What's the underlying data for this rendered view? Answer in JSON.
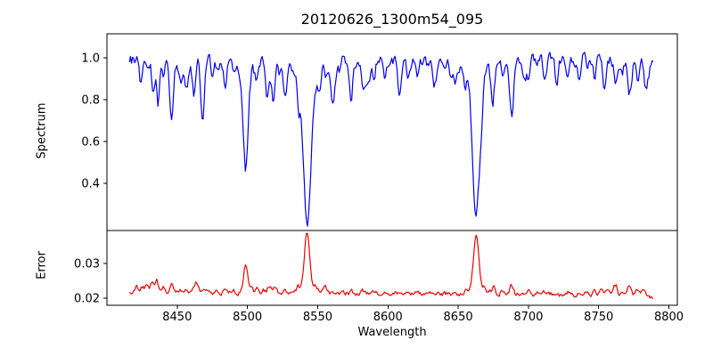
{
  "title": "20120626_1300m54_095",
  "layout_colors": {
    "background": "#ffffff",
    "axes": "#000000",
    "text": "#000000",
    "spectrum_line": "#0000ee",
    "error_line": "#ee0000"
  },
  "chart_data": {
    "type": "line",
    "title": "20120626_1300m54_095",
    "xlabel": "Wavelength",
    "xlim": [
      8400,
      8806
    ],
    "xticks": [
      8450,
      8500,
      8550,
      8600,
      8650,
      8700,
      8750,
      8800
    ],
    "xtick_labels": [
      "8450",
      "8500",
      "8550",
      "8600",
      "8650",
      "8700",
      "8750",
      "8800"
    ],
    "data_wavelength_range": [
      8416,
      8789
    ],
    "sample_step_angstrom": 0.75,
    "grid": false,
    "legend": false,
    "panels": [
      {
        "name": "spectrum",
        "ylabel": "Spectrum",
        "ylim": [
          0.175,
          1.115
        ],
        "yticks": [
          0.4,
          0.6,
          0.8,
          1.0
        ],
        "ytick_labels": [
          "0.4",
          "0.6",
          "0.8",
          "1.0"
        ],
        "line_color": "#0000ee",
        "continuum": 0.99,
        "noise_amplitude": 0.017,
        "absorption_lines": [
          {
            "center": 8424,
            "depth": 0.1,
            "sigma": 1.1
          },
          {
            "center": 8428.5,
            "depth": 0.05,
            "sigma": 0.9
          },
          {
            "center": 8433,
            "depth": 0.16,
            "sigma": 1.1
          },
          {
            "center": 8437,
            "depth": 0.04,
            "sigma": 0.9
          },
          {
            "center": 8440.5,
            "depth": 0.09,
            "sigma": 1.0
          },
          {
            "center": 8446,
            "depth": 0.26,
            "sigma": 1.2
          },
          {
            "center": 8452,
            "depth": 0.05,
            "sigma": 0.9
          },
          {
            "center": 8456.5,
            "depth": 0.07,
            "sigma": 0.9
          },
          {
            "center": 8462,
            "depth": 0.13,
            "sigma": 1.1
          },
          {
            "center": 8468,
            "depth": 0.32,
            "sigma": 1.3
          },
          {
            "center": 8475,
            "depth": 0.06,
            "sigma": 0.9
          },
          {
            "center": 8479,
            "depth": 0.05,
            "sigma": 0.9
          },
          {
            "center": 8483.5,
            "depth": 0.08,
            "sigma": 1.0
          },
          {
            "center": 8490,
            "depth": 0.06,
            "sigma": 0.9
          },
          {
            "center": 8494,
            "depth": 0.05,
            "sigma": 0.9
          },
          {
            "center": 8498.8,
            "depth": 0.52,
            "sigma": 1.7,
            "damping_wings": true
          },
          {
            "center": 8506,
            "depth": 0.07,
            "sigma": 0.9
          },
          {
            "center": 8514,
            "depth": 0.17,
            "sigma": 1.2
          },
          {
            "center": 8518.5,
            "depth": 0.21,
            "sigma": 1.2
          },
          {
            "center": 8523,
            "depth": 0.06,
            "sigma": 0.9
          },
          {
            "center": 8527,
            "depth": 0.08,
            "sigma": 1.0
          },
          {
            "center": 8536,
            "depth": 0.1,
            "sigma": 1.0
          },
          {
            "center": 8542.5,
            "depth": 0.78,
            "sigma": 2.6,
            "damping_wings": true
          },
          {
            "center": 8551,
            "depth": 0.08,
            "sigma": 0.9
          },
          {
            "center": 8556,
            "depth": 0.06,
            "sigma": 0.9
          },
          {
            "center": 8560.5,
            "depth": 0.13,
            "sigma": 1.2
          },
          {
            "center": 8566,
            "depth": 0.05,
            "sigma": 0.9
          },
          {
            "center": 8574,
            "depth": 0.09,
            "sigma": 1.0
          },
          {
            "center": 8582,
            "depth": 0.08,
            "sigma": 1.0
          },
          {
            "center": 8590,
            "depth": 0.06,
            "sigma": 0.9
          },
          {
            "center": 8598,
            "depth": 0.07,
            "sigma": 0.9
          },
          {
            "center": 8608,
            "depth": 0.14,
            "sigma": 1.2
          },
          {
            "center": 8614,
            "depth": 0.06,
            "sigma": 0.9
          },
          {
            "center": 8621,
            "depth": 0.11,
            "sigma": 1.1
          },
          {
            "center": 8628,
            "depth": 0.05,
            "sigma": 0.9
          },
          {
            "center": 8634,
            "depth": 0.05,
            "sigma": 0.9
          },
          {
            "center": 8641,
            "depth": 0.06,
            "sigma": 0.9
          },
          {
            "center": 8648,
            "depth": 0.1,
            "sigma": 1.1
          },
          {
            "center": 8655,
            "depth": 0.07,
            "sigma": 1.0
          },
          {
            "center": 8662.8,
            "depth": 0.74,
            "sigma": 2.4,
            "damping_wings": true
          },
          {
            "center": 8674.5,
            "depth": 0.19,
            "sigma": 1.2
          },
          {
            "center": 8682,
            "depth": 0.07,
            "sigma": 0.9
          },
          {
            "center": 8688,
            "depth": 0.27,
            "sigma": 1.4
          },
          {
            "center": 8696,
            "depth": 0.06,
            "sigma": 0.9
          },
          {
            "center": 8700.5,
            "depth": 0.09,
            "sigma": 1.0
          },
          {
            "center": 8706,
            "depth": 0.05,
            "sigma": 0.9
          },
          {
            "center": 8712,
            "depth": 0.1,
            "sigma": 1.1
          },
          {
            "center": 8720,
            "depth": 0.11,
            "sigma": 1.1
          },
          {
            "center": 8728,
            "depth": 0.12,
            "sigma": 1.2
          },
          {
            "center": 8736,
            "depth": 0.09,
            "sigma": 1.0
          },
          {
            "center": 8742,
            "depth": 0.06,
            "sigma": 0.9
          },
          {
            "center": 8747,
            "depth": 0.08,
            "sigma": 1.0
          },
          {
            "center": 8754,
            "depth": 0.12,
            "sigma": 1.2
          },
          {
            "center": 8762,
            "depth": 0.1,
            "sigma": 1.0
          },
          {
            "center": 8767,
            "depth": 0.06,
            "sigma": 0.9
          },
          {
            "center": 8772,
            "depth": 0.15,
            "sigma": 1.4
          },
          {
            "center": 8778,
            "depth": 0.07,
            "sigma": 0.9
          },
          {
            "center": 8783,
            "depth": 0.05,
            "sigma": 0.9
          }
        ],
        "random_weak_lines": {
          "probability_per_2A": 0.12,
          "depth_range": [
            0.025,
            0.115
          ],
          "sigma_range": [
            0.7,
            1.5
          ]
        }
      },
      {
        "name": "error",
        "ylabel": "Error",
        "ylim": [
          0.018,
          0.0395
        ],
        "yticks": [
          0.02,
          0.03
        ],
        "ytick_labels": [
          "0.02",
          "0.03"
        ],
        "line_color": "#ee0000",
        "baseline_start": 0.0218,
        "baseline_end": 0.0209,
        "noise_amplitude": 0.0004,
        "peaks": [
          {
            "center": 8421,
            "height": 0.0012,
            "sigma": 1.2
          },
          {
            "center": 8425,
            "height": 0.0018,
            "sigma": 1.1
          },
          {
            "center": 8428.5,
            "height": 0.0022,
            "sigma": 1.0
          },
          {
            "center": 8432,
            "height": 0.0026,
            "sigma": 1.1
          },
          {
            "center": 8435.5,
            "height": 0.003,
            "sigma": 1.1
          },
          {
            "center": 8440,
            "height": 0.0014,
            "sigma": 1.0
          },
          {
            "center": 8446,
            "height": 0.0019,
            "sigma": 1.1
          },
          {
            "center": 8452,
            "height": 0.0008,
            "sigma": 0.9
          },
          {
            "center": 8457,
            "height": 0.0011,
            "sigma": 0.9
          },
          {
            "center": 8463.5,
            "height": 0.0026,
            "sigma": 1.6
          },
          {
            "center": 8470,
            "height": 0.0011,
            "sigma": 1.0
          },
          {
            "center": 8477,
            "height": 0.0007,
            "sigma": 0.9
          },
          {
            "center": 8484,
            "height": 0.0009,
            "sigma": 1.0
          },
          {
            "center": 8490,
            "height": 0.0007,
            "sigma": 0.9
          },
          {
            "center": 8498.8,
            "height": 0.0079,
            "sigma": 1.5
          },
          {
            "center": 8503,
            "height": 0.001,
            "sigma": 0.9
          },
          {
            "center": 8507,
            "height": 0.0017,
            "sigma": 1.0
          },
          {
            "center": 8511,
            "height": 0.0011,
            "sigma": 0.9
          },
          {
            "center": 8515.5,
            "height": 0.0021,
            "sigma": 1.2
          },
          {
            "center": 8519.5,
            "height": 0.0014,
            "sigma": 1.0
          },
          {
            "center": 8527,
            "height": 0.0007,
            "sigma": 0.9
          },
          {
            "center": 8536,
            "height": 0.0011,
            "sigma": 0.9
          },
          {
            "center": 8542.5,
            "height": 0.0162,
            "sigma": 1.8
          },
          {
            "center": 8549,
            "height": 0.0011,
            "sigma": 0.9
          },
          {
            "center": 8555.5,
            "height": 0.0014,
            "sigma": 1.2
          },
          {
            "center": 8561,
            "height": 0.0007,
            "sigma": 0.9
          },
          {
            "center": 8574,
            "height": 0.0007,
            "sigma": 0.9
          },
          {
            "center": 8582,
            "height": 0.0005,
            "sigma": 0.9
          },
          {
            "center": 8590,
            "height": 0.0005,
            "sigma": 0.9
          },
          {
            "center": 8598,
            "height": 0.0005,
            "sigma": 0.9
          },
          {
            "center": 8608,
            "height": 0.0007,
            "sigma": 0.9
          },
          {
            "center": 8621,
            "height": 0.0005,
            "sigma": 0.9
          },
          {
            "center": 8634,
            "height": 0.0004,
            "sigma": 0.9
          },
          {
            "center": 8648,
            "height": 0.0007,
            "sigma": 0.9
          },
          {
            "center": 8656,
            "height": 0.0009,
            "sigma": 1.0
          },
          {
            "center": 8662.8,
            "height": 0.0162,
            "sigma": 1.8
          },
          {
            "center": 8669,
            "height": 0.0011,
            "sigma": 0.9
          },
          {
            "center": 8675,
            "height": 0.002,
            "sigma": 1.1
          },
          {
            "center": 8681,
            "height": 0.0009,
            "sigma": 0.9
          },
          {
            "center": 8688,
            "height": 0.0024,
            "sigma": 1.3
          },
          {
            "center": 8695,
            "height": 0.0006,
            "sigma": 0.9
          },
          {
            "center": 8700,
            "height": 0.0007,
            "sigma": 0.9
          },
          {
            "center": 8706,
            "height": 0.0005,
            "sigma": 0.9
          },
          {
            "center": 8712,
            "height": 0.0007,
            "sigma": 0.9
          },
          {
            "center": 8720,
            "height": 0.0007,
            "sigma": 0.9
          },
          {
            "center": 8728,
            "height": 0.0009,
            "sigma": 1.0
          },
          {
            "center": 8736,
            "height": 0.0011,
            "sigma": 1.0
          },
          {
            "center": 8742,
            "height": 0.0007,
            "sigma": 0.9
          },
          {
            "center": 8747,
            "height": 0.0013,
            "sigma": 1.0
          },
          {
            "center": 8752,
            "height": 0.0009,
            "sigma": 0.9
          },
          {
            "center": 8756,
            "height": 0.002,
            "sigma": 1.1
          },
          {
            "center": 8762,
            "height": 0.0026,
            "sigma": 1.2
          },
          {
            "center": 8767,
            "height": 0.0013,
            "sigma": 1.0
          },
          {
            "center": 8772,
            "height": 0.0024,
            "sigma": 1.3
          },
          {
            "center": 8777,
            "height": 0.0011,
            "sigma": 0.9
          },
          {
            "center": 8782,
            "height": 0.0016,
            "sigma": 1.1
          },
          {
            "center": 8788,
            "height": -0.0009,
            "sigma": 2.0
          }
        ]
      }
    ]
  }
}
